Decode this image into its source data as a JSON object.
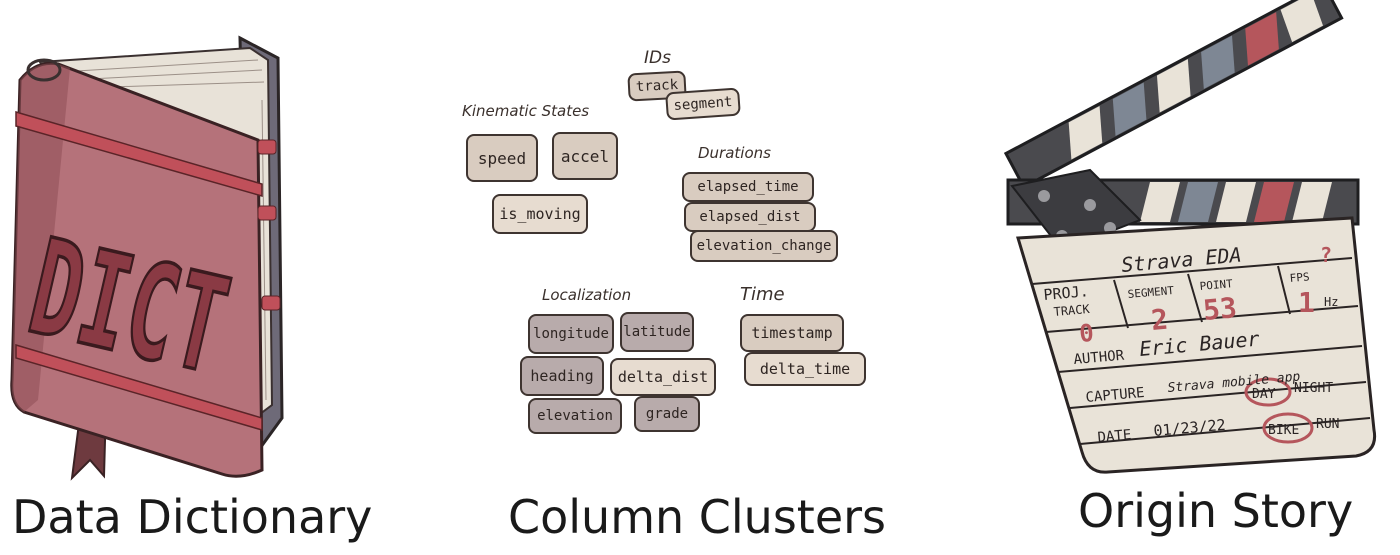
{
  "panels": {
    "dictionary": {
      "caption": "Data Dictionary",
      "cover_text": "DICT"
    },
    "clusters": {
      "caption": "Column Clusters",
      "groups": {
        "ids": {
          "label": "IDs",
          "items": [
            "track",
            "segment"
          ]
        },
        "kinematic": {
          "label": "Kinematic States",
          "items": [
            "speed",
            "accel",
            "is_moving"
          ]
        },
        "durations": {
          "label": "Durations",
          "items": [
            "elapsed_time",
            "elapsed_dist",
            "elevation_change"
          ]
        },
        "localization": {
          "label": "Localization",
          "items": [
            "longitude",
            "latitude",
            "heading",
            "delta_dist",
            "elevation",
            "grade"
          ]
        },
        "time": {
          "label": "Time",
          "items": [
            "timestamp",
            "delta_time"
          ]
        }
      }
    },
    "origin": {
      "caption": "Origin Story",
      "slate": {
        "title": "Strava EDA",
        "proj_label": "PROJ.",
        "track_label": "TRACK",
        "track_value": "0",
        "segment_label": "SEGMENT",
        "segment_value": "2",
        "point_label": "POINT",
        "point_value": "53",
        "fps_label": "FPS",
        "fps_value": "1",
        "fps_mark": "?",
        "fps_unit": "Hz",
        "author_label": "AUTHOR",
        "author_value": "Eric Bauer",
        "capture_label": "CAPTURE",
        "capture_value": "Strava mobile app",
        "day_label": "DAY",
        "night_label": "NIGHT",
        "bike_label": "BIKE",
        "run_label": "RUN",
        "date_label": "DATE",
        "date_value": "01/23/22"
      }
    }
  },
  "colors": {
    "book_cover": "#b5727a",
    "book_dark": "#6e3a3f",
    "chip_beige": "#d9ccc0",
    "chip_gray": "#b8abab",
    "slate_board": "#e9e3d8",
    "slate_red": "#b5565c",
    "slate_gray": "#7e8794"
  },
  "icons": [
    "book-icon",
    "clapperboard-icon"
  ]
}
